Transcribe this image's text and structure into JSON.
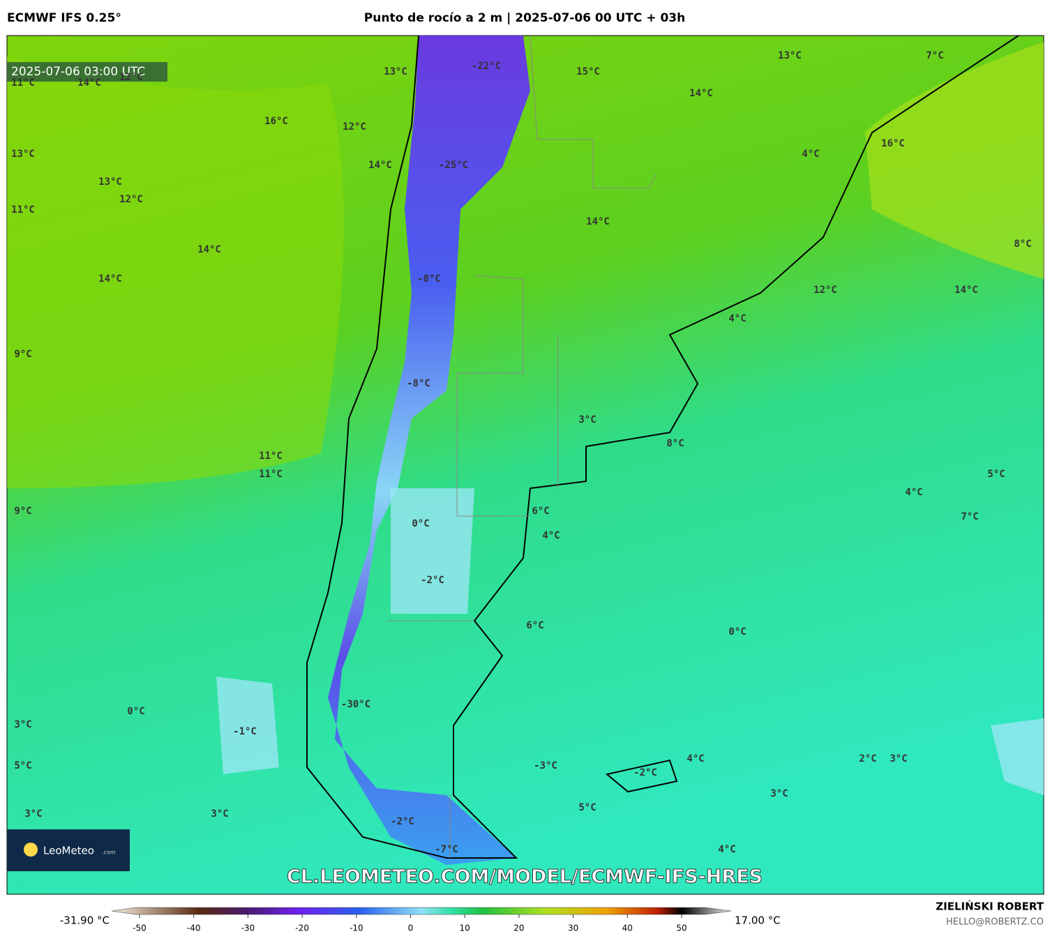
{
  "header": {
    "model": "ECMWF IFS 0.25°",
    "title": "Punto de rocío a 2 m | 2025-07-06 00 UTC + 03h"
  },
  "map": {
    "timestamp": "2025-07-06 03:00 UTC",
    "labels": [
      "13°C",
      "7°C",
      "-22°C",
      "15°C",
      "13°C",
      "11°C",
      "14°C",
      "12°C",
      "14°C",
      "16°C",
      "12°C",
      "16°C",
      "13°C",
      "4°C",
      "14°C",
      "-25°C",
      "13°C",
      "12°C",
      "11°C",
      "14°C",
      "8°C",
      "14°C",
      "14°C",
      "-8°C",
      "12°C",
      "14°C",
      "4°C",
      "9°C",
      "-8°C",
      "3°C",
      "8°C",
      "11°C",
      "11°C",
      "5°C",
      "4°C",
      "9°C",
      "6°C",
      "7°C",
      "0°C",
      "4°C",
      "-2°C",
      "6°C",
      "0°C",
      "-30°C",
      "0°C",
      "3°C",
      "-1°C",
      "4°C",
      "2°C",
      "3°C",
      "-3°C",
      "5°C",
      "-2°C",
      "3°C",
      "5°C",
      "3°C",
      "3°C",
      "-2°C",
      "4°C",
      "-7°C"
    ],
    "logo": {
      "name": "LeoMeteo",
      "suffix": ".com"
    },
    "url": "CL.LEOMETEO.COM/MODEL/ECMWF-IFS-HRES"
  },
  "colorbar": {
    "min_label": "-31.90 °C",
    "max_label": "17.00 °C",
    "ticks": [
      -50,
      -40,
      -30,
      -20,
      -10,
      0,
      10,
      20,
      30,
      40,
      50
    ]
  },
  "credits": {
    "author": "ZIELIŃSKI ROBERT",
    "email": "HELLO@ROBERTZ.CO"
  }
}
